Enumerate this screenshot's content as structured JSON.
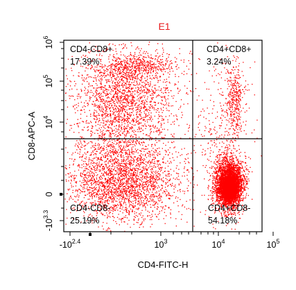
{
  "chart_data": {
    "type": "scatter",
    "title": "E1",
    "title_color": "#e8191c",
    "xlabel": "CD4-FITC-H",
    "ylabel": "CD8-APC-A",
    "x_scale": "biexponential (log above 10^3)",
    "y_scale": "biexponential (log above 10^4)",
    "x_ticks": [
      {
        "base": "-10",
        "exp": "2.4",
        "value": -251
      },
      {
        "base": "10",
        "exp": "3",
        "value": 1000
      },
      {
        "base": "10",
        "exp": "4",
        "value": 10000
      },
      {
        "base": "10",
        "exp": "5",
        "value": 100000
      }
    ],
    "y_ticks": [
      {
        "base": "10",
        "exp": "6",
        "value": 1000000
      },
      {
        "base": "10",
        "exp": "5",
        "value": 100000
      },
      {
        "base": "10",
        "exp": "4",
        "value": 10000
      },
      {
        "base": "",
        "exp": "",
        "label": "0",
        "value": 0
      },
      {
        "base": "-10",
        "exp": "3.3",
        "value": -1995
      }
    ],
    "gate": {
      "x_threshold": 4000,
      "y_threshold": 3000
    },
    "quadrants": [
      {
        "name": "CD4-CD8+",
        "percent": "17.39%"
      },
      {
        "name": "CD4+CD8+",
        "percent": "3.24%"
      },
      {
        "name": "CD4-CD8-",
        "percent": "25.19%"
      },
      {
        "name": "CD4+CD8-",
        "percent": "54.18%"
      }
    ],
    "point_color": "#ff0000",
    "grid": false,
    "legend": "none"
  }
}
